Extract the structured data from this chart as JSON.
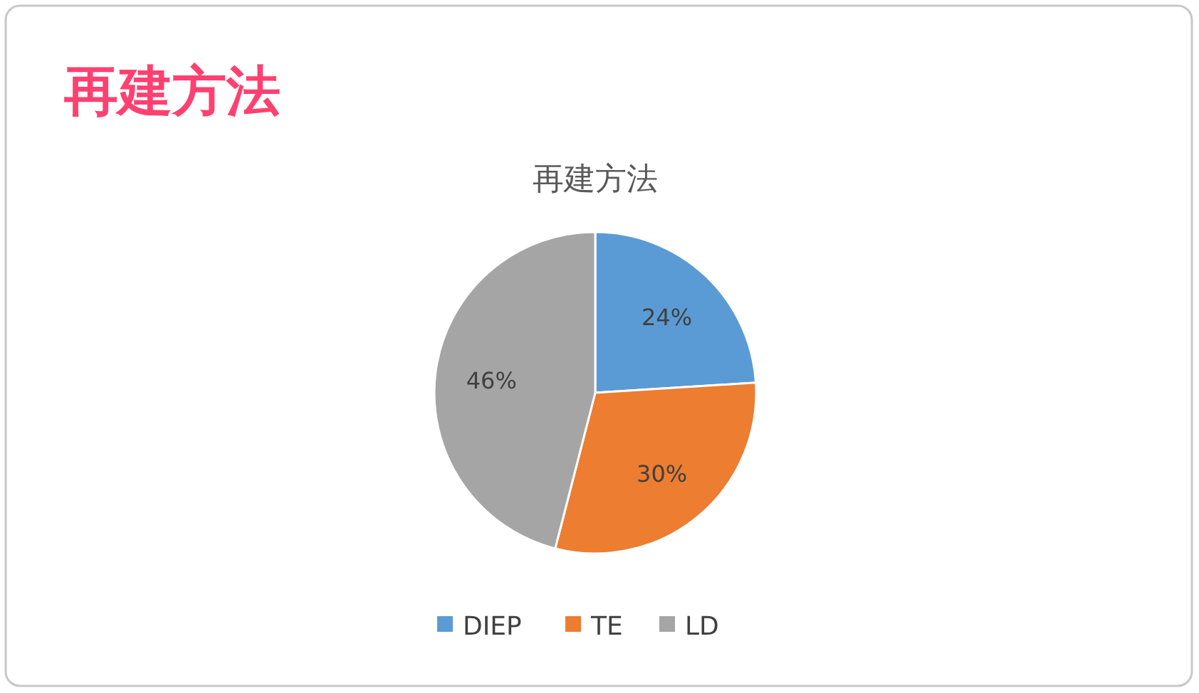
{
  "chart_data": {
    "type": "pie",
    "title": "再建方法",
    "subtitle": "再建方法",
    "categories": [
      "DIEP",
      "TE",
      "LD"
    ],
    "values": [
      24,
      30,
      46
    ],
    "colors": [
      "#5b9bd5",
      "#ed7d31",
      "#a5a5a5"
    ],
    "value_labels": [
      "24%",
      "30%",
      "46%"
    ],
    "legend": "bottom"
  }
}
